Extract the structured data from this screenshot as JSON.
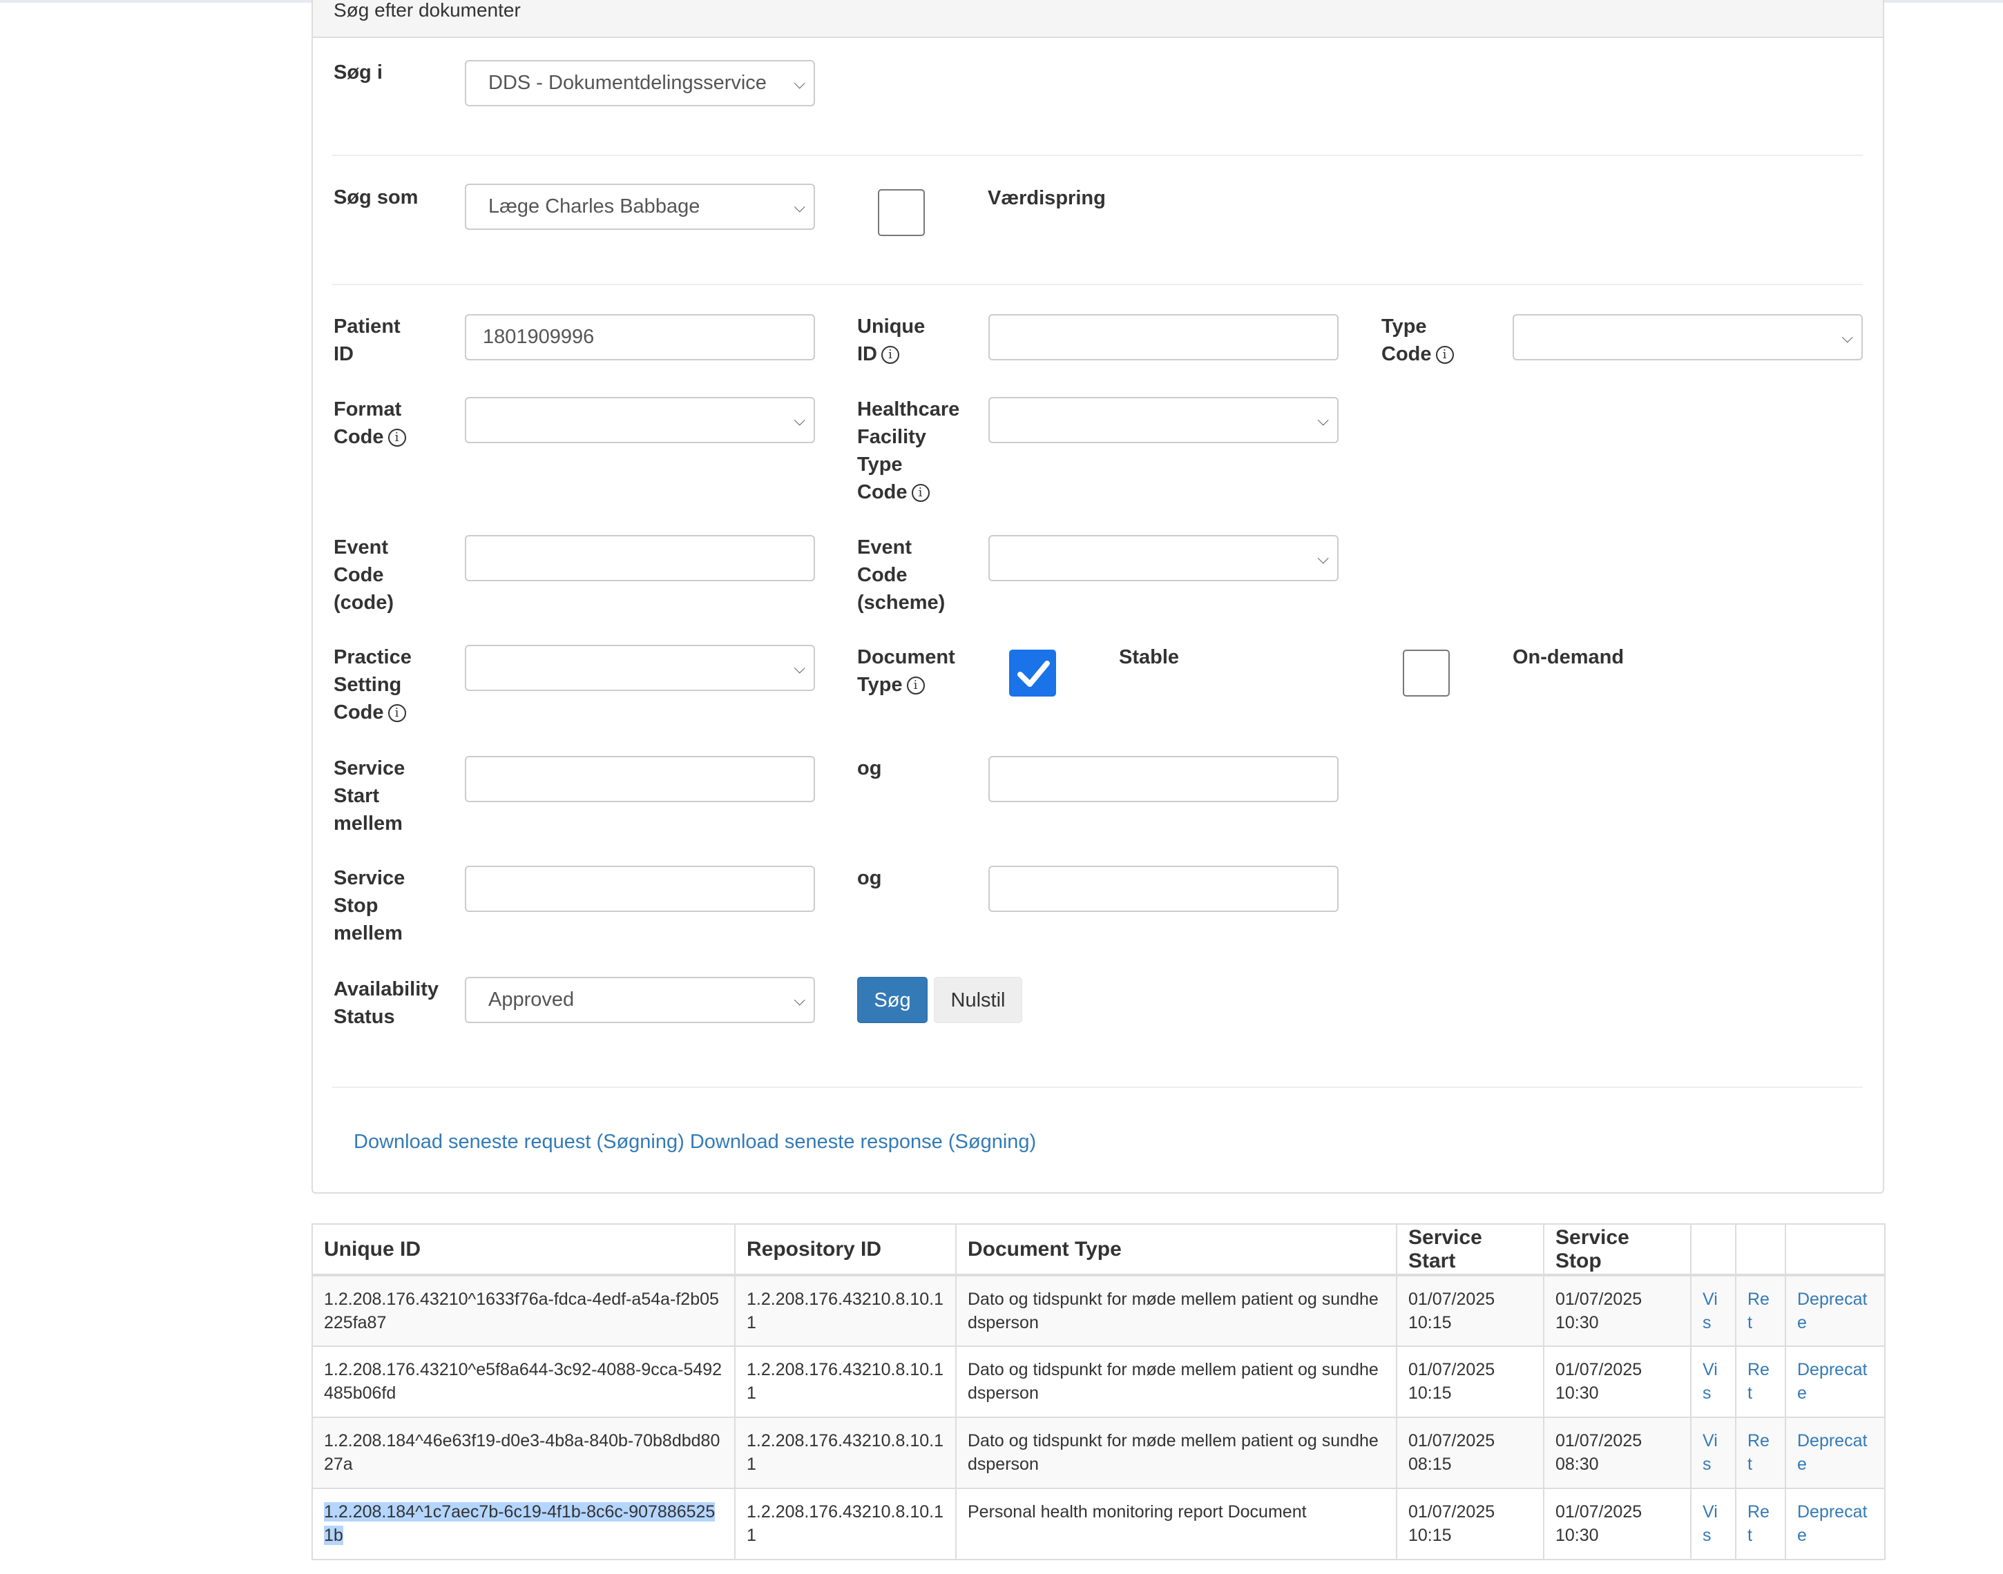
{
  "panel": {
    "title": "Søg efter dokumenter"
  },
  "form": {
    "sog_i": {
      "label": "Søg i",
      "value": "DDS - Dokumentdelingsservice"
    },
    "sog_som": {
      "label": "Søg som",
      "value": "Læge Charles Babbage"
    },
    "vaerdispring": {
      "label": "Værdispring",
      "checked": false
    },
    "patient_id": {
      "label1": "Patient",
      "label2": "ID",
      "value": "1801909996"
    },
    "unique_id": {
      "label1": "Unique",
      "label2": "ID",
      "value": ""
    },
    "type_code": {
      "label1": "Type",
      "label2": "Code",
      "value": ""
    },
    "format_code": {
      "label1": "Format",
      "label2": "Code",
      "value": ""
    },
    "healthcare": {
      "label1": "Healthcare",
      "label2": "Facility",
      "label3": "Type",
      "label4": "Code",
      "value": ""
    },
    "event_code": {
      "label1": "Event",
      "label2": "Code",
      "label3": "(code)",
      "value": ""
    },
    "event_scheme": {
      "label1": "Event",
      "label2": "Code",
      "label3": "(scheme)",
      "value": ""
    },
    "practice": {
      "label1": "Practice",
      "label2": "Setting",
      "label3": "Code",
      "value": ""
    },
    "document_type": {
      "label1": "Document",
      "label2": "Type"
    },
    "stable": {
      "label": "Stable",
      "checked": true
    },
    "on_demand": {
      "label": "On-demand",
      "checked": false
    },
    "service_start": {
      "label1": "Service",
      "label2": "Start",
      "label3": "mellem",
      "og": "og",
      "from": "",
      "to": ""
    },
    "service_stop": {
      "label1": "Service",
      "label2": "Stop",
      "label3": "mellem",
      "og": "og",
      "from": "",
      "to": ""
    },
    "availability": {
      "label1": "Availability",
      "label2": "Status",
      "value": "Approved"
    },
    "search_button": "Søg",
    "reset_button": "Nulstil",
    "info_glyph": "i",
    "chevron": "⌵"
  },
  "links": {
    "request": "Download seneste request (Søgning)",
    "response": "Download seneste response (Søgning)"
  },
  "table": {
    "headers": [
      "Unique ID",
      "Repository ID",
      "Document Type",
      "Service Start",
      "Service Stop",
      "",
      "",
      ""
    ],
    "rows": [
      {
        "unique_id": "1.2.208.176.43210^1633f76a-fdca-4edf-a54a-f2b05225fa87",
        "repository_id": "1.2.208.176.43210.8.10.11",
        "document_type": "Dato og tidspunkt for møde mellem patient og sundhedsperson",
        "start_date": "01/07/2025",
        "start_time": "10:15",
        "stop_date": "01/07/2025",
        "stop_time": "10:30",
        "vis": "Vis",
        "ret": "Ret",
        "deprecate": "Deprecate"
      },
      {
        "unique_id": "1.2.208.176.43210^e5f8a644-3c92-4088-9cca-5492485b06fd",
        "repository_id": "1.2.208.176.43210.8.10.11",
        "document_type": "Dato og tidspunkt for møde mellem patient og sundhedsperson",
        "start_date": "01/07/2025",
        "start_time": "10:15",
        "stop_date": "01/07/2025",
        "stop_time": "10:30",
        "vis": "Vis",
        "ret": "Ret",
        "deprecate": "Deprecate"
      },
      {
        "unique_id": "1.2.208.184^46e63f19-d0e3-4b8a-840b-70b8dbd8027a",
        "repository_id": "1.2.208.176.43210.8.10.11",
        "document_type": "Dato og tidspunkt for møde mellem patient og sundhedsperson",
        "start_date": "01/07/2025",
        "start_time": "08:15",
        "stop_date": "01/07/2025",
        "stop_time": "08:30",
        "vis": "Vis",
        "ret": "Ret",
        "deprecate": "Deprecate"
      },
      {
        "unique_id": "1.2.208.184^1c7aec7b-6c19-4f1b-8c6c-9078865251b",
        "repository_id": "1.2.208.176.43210.8.10.11",
        "document_type": "Personal health monitoring report Document",
        "start_date": "01/07/2025",
        "start_time": "10:15",
        "stop_date": "01/07/2025",
        "stop_time": "10:30",
        "vis": "Vis",
        "ret": "Ret",
        "deprecate": "Deprecate",
        "selected": true
      }
    ]
  },
  "colors": {
    "primary": "#337ab7",
    "checkbox_on": "#1a73e8",
    "selection": "#b4d5fe"
  }
}
